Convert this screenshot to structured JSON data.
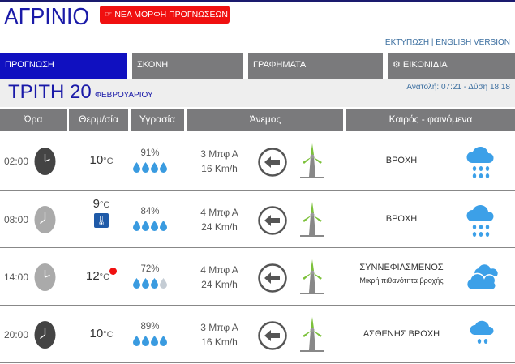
{
  "header": {
    "title": "ΑΓΡΙΝΙΟ",
    "new_button": "ΝΕΑ ΜΟΡΦΗ ΠΡΟΓΝΩΣΕΩΝ",
    "print_link": "ΕΚΤΥΠΩΣΗ",
    "separator": " | ",
    "english_link": "ENGLISH VERSION"
  },
  "tabs": [
    {
      "label": "ΠΡΟΓΝΩΣΗ",
      "active": true
    },
    {
      "label": "ΣΚΟΝΗ"
    },
    {
      "label": "ΓΡΑΦΗΜΑΤΑ"
    },
    {
      "label": "ΕΙΚΟΝΙΔΙΑ",
      "icon": "gear-icon"
    }
  ],
  "date": {
    "day": "ΤΡΙΤΗ 20",
    "month": "ΦΕΒΡΟΥΑΡΙΟΥ",
    "sun": "Ανατολή: 07:21  - Δύση 18:18"
  },
  "columns": [
    "Ώρα",
    "Θερμ/σία",
    "Υγρασία",
    "Άνεμος",
    "Καιρός - φαινόμενα"
  ],
  "colors": {
    "accent": "#1010c0",
    "header_gray": "#7a7a7c",
    "red": "#f01010",
    "drop": "#3a9be0",
    "turbine_green": "#7cc13a"
  },
  "rows": [
    {
      "time": "02:00",
      "clock": "dark",
      "temp": "10",
      "unit": "°C",
      "hum": "91%",
      "drops": 4,
      "beaufort": "3 Μπφ Α",
      "speed": "16 Km/h",
      "wind_dir": "east",
      "phen": "ΒΡΟΧΗ",
      "sub": "",
      "icon": "rain-icon"
    },
    {
      "time": "08:00",
      "clock": "light",
      "temp": "9",
      "unit": "°C",
      "feels_icon": true,
      "hum": "84%",
      "drops": 4,
      "beaufort": "4 Μπφ Α",
      "speed": "24 Km/h",
      "wind_dir": "east",
      "phen": "ΒΡΟΧΗ",
      "sub": "",
      "icon": "rain-icon"
    },
    {
      "time": "14:00",
      "clock": "light",
      "temp": "12",
      "unit": "°C",
      "max_dot": true,
      "hum": "72%",
      "drops": 3,
      "beaufort": "4 Μπφ Α",
      "speed": "24 Km/h",
      "wind_dir": "east",
      "phen": "ΣΥΝΝΕΦΙΑΣΜΕΝΟΣ",
      "sub": "Μικρή πιθανότητα βροχής",
      "icon": "cloudy-icon"
    },
    {
      "time": "20:00",
      "clock": "dark",
      "temp": "10",
      "unit": "°C",
      "hum": "89%",
      "drops": 4,
      "beaufort": "3 Μπφ Α",
      "speed": "16 Km/h",
      "wind_dir": "east",
      "phen": "ΑΣΘΕΝΗΣ ΒΡΟΧΗ",
      "sub": "",
      "icon": "light-rain-icon"
    }
  ]
}
